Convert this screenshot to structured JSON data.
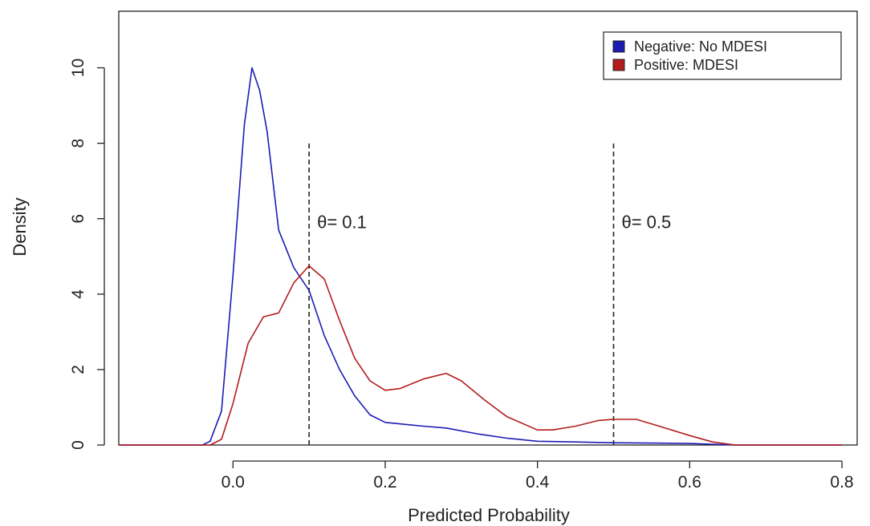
{
  "chart_data": {
    "type": "line",
    "title": "",
    "xlabel": "Predicted Probability",
    "ylabel": "Density",
    "xlim": [
      -0.15,
      0.82
    ],
    "ylim": [
      0,
      11.5
    ],
    "x_ticks": [
      0.0,
      0.2,
      0.4,
      0.6,
      0.8
    ],
    "x_tick_labels": [
      "0.0",
      "0.2",
      "0.4",
      "0.6",
      "0.8"
    ],
    "y_ticks": [
      0,
      2,
      4,
      6,
      8,
      10
    ],
    "y_tick_labels": [
      "0",
      "2",
      "4",
      "6",
      "8",
      "10"
    ],
    "grid": false,
    "legend_position": "top-right",
    "series": [
      {
        "name": "Negative: No MDESI",
        "color": "#1c1cb4",
        "x": [
          -0.15,
          -0.04,
          -0.03,
          -0.015,
          0.0,
          0.015,
          0.025,
          0.035,
          0.045,
          0.06,
          0.08,
          0.1,
          0.12,
          0.14,
          0.16,
          0.18,
          0.2,
          0.25,
          0.28,
          0.32,
          0.36,
          0.4,
          0.45,
          0.5,
          0.55,
          0.6,
          0.66,
          0.8
        ],
        "y": [
          0,
          0,
          0.1,
          0.9,
          4.5,
          8.5,
          10.0,
          9.4,
          8.3,
          5.7,
          4.7,
          4.1,
          2.9,
          2.0,
          1.3,
          0.8,
          0.6,
          0.5,
          0.45,
          0.3,
          0.18,
          0.1,
          0.08,
          0.06,
          0.05,
          0.04,
          0.0,
          0.0
        ]
      },
      {
        "name": "Positive: MDESI",
        "color": "#b41c1c",
        "x": [
          -0.15,
          -0.03,
          -0.015,
          0.0,
          0.02,
          0.04,
          0.06,
          0.08,
          0.1,
          0.12,
          0.14,
          0.16,
          0.18,
          0.2,
          0.22,
          0.25,
          0.28,
          0.3,
          0.33,
          0.36,
          0.4,
          0.42,
          0.45,
          0.48,
          0.5,
          0.53,
          0.56,
          0.6,
          0.63,
          0.66,
          0.8
        ],
        "y": [
          0,
          0,
          0.15,
          1.1,
          2.7,
          3.4,
          3.5,
          4.3,
          4.75,
          4.4,
          3.3,
          2.3,
          1.7,
          1.45,
          1.5,
          1.75,
          1.9,
          1.7,
          1.2,
          0.75,
          0.4,
          0.4,
          0.5,
          0.65,
          0.68,
          0.68,
          0.5,
          0.25,
          0.08,
          0.0,
          0.0
        ]
      }
    ],
    "annotations": [
      {
        "label": "θ= 0.1",
        "x": 0.1,
        "line_y": [
          0,
          8
        ]
      },
      {
        "label": "θ= 0.5",
        "x": 0.5,
        "line_y": [
          0,
          8
        ]
      }
    ]
  }
}
